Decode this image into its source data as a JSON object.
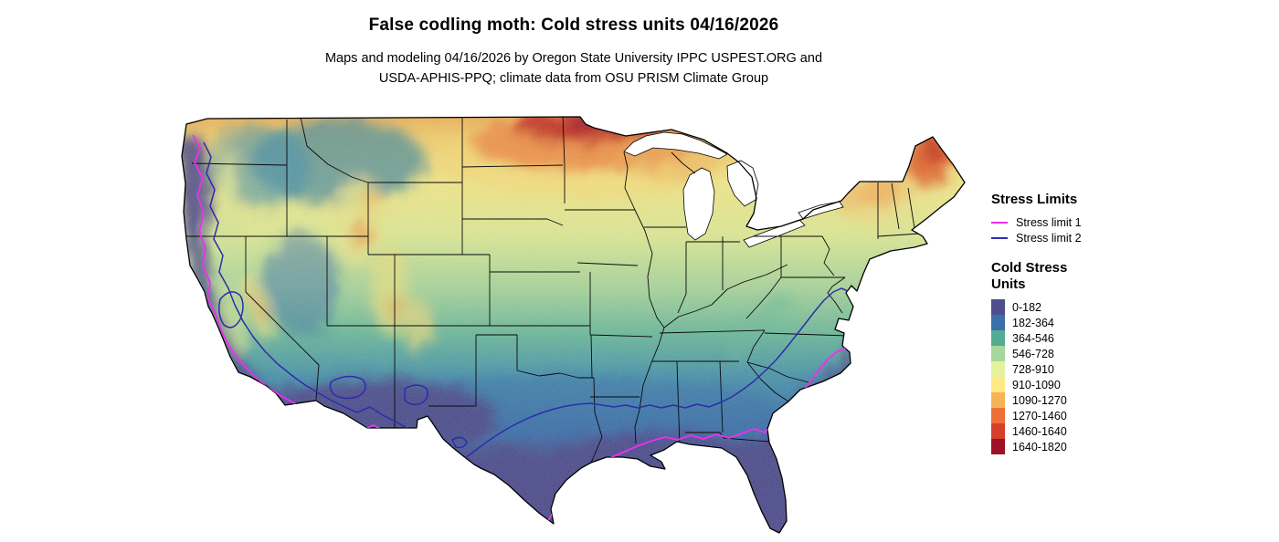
{
  "title": "False codling moth: Cold stress units 04/16/2026",
  "subtitle": {
    "line1": "Maps and modeling 04/16/2026 by Oregon State University IPPC USPEST.ORG and",
    "line2": "USDA-APHIS-PPQ; climate data from OSU PRISM Climate Group"
  },
  "legend": {
    "stress_limits": {
      "heading": "Stress Limits",
      "items": [
        {
          "label": "Stress limit 1",
          "color": "#ee2fee"
        },
        {
          "label": "Stress limit 2",
          "color": "#2d2daa"
        }
      ]
    },
    "cold_stress_units": {
      "heading_line1": "Cold Stress",
      "heading_line2": "Units",
      "items": [
        {
          "label": "0-182",
          "color": "#4e4d8d"
        },
        {
          "label": "182-364",
          "color": "#3b6fa9"
        },
        {
          "label": "364-546",
          "color": "#54ab92"
        },
        {
          "label": "546-728",
          "color": "#a6d79c"
        },
        {
          "label": "728-910",
          "color": "#e6f19e"
        },
        {
          "label": "910-1090",
          "color": "#fde986"
        },
        {
          "label": "1090-1270",
          "color": "#f8b257"
        },
        {
          "label": "1270-1460",
          "color": "#ec7036"
        },
        {
          "label": "1460-1640",
          "color": "#d6402b"
        },
        {
          "label": "1640-1820",
          "color": "#9c1127"
        }
      ]
    }
  }
}
